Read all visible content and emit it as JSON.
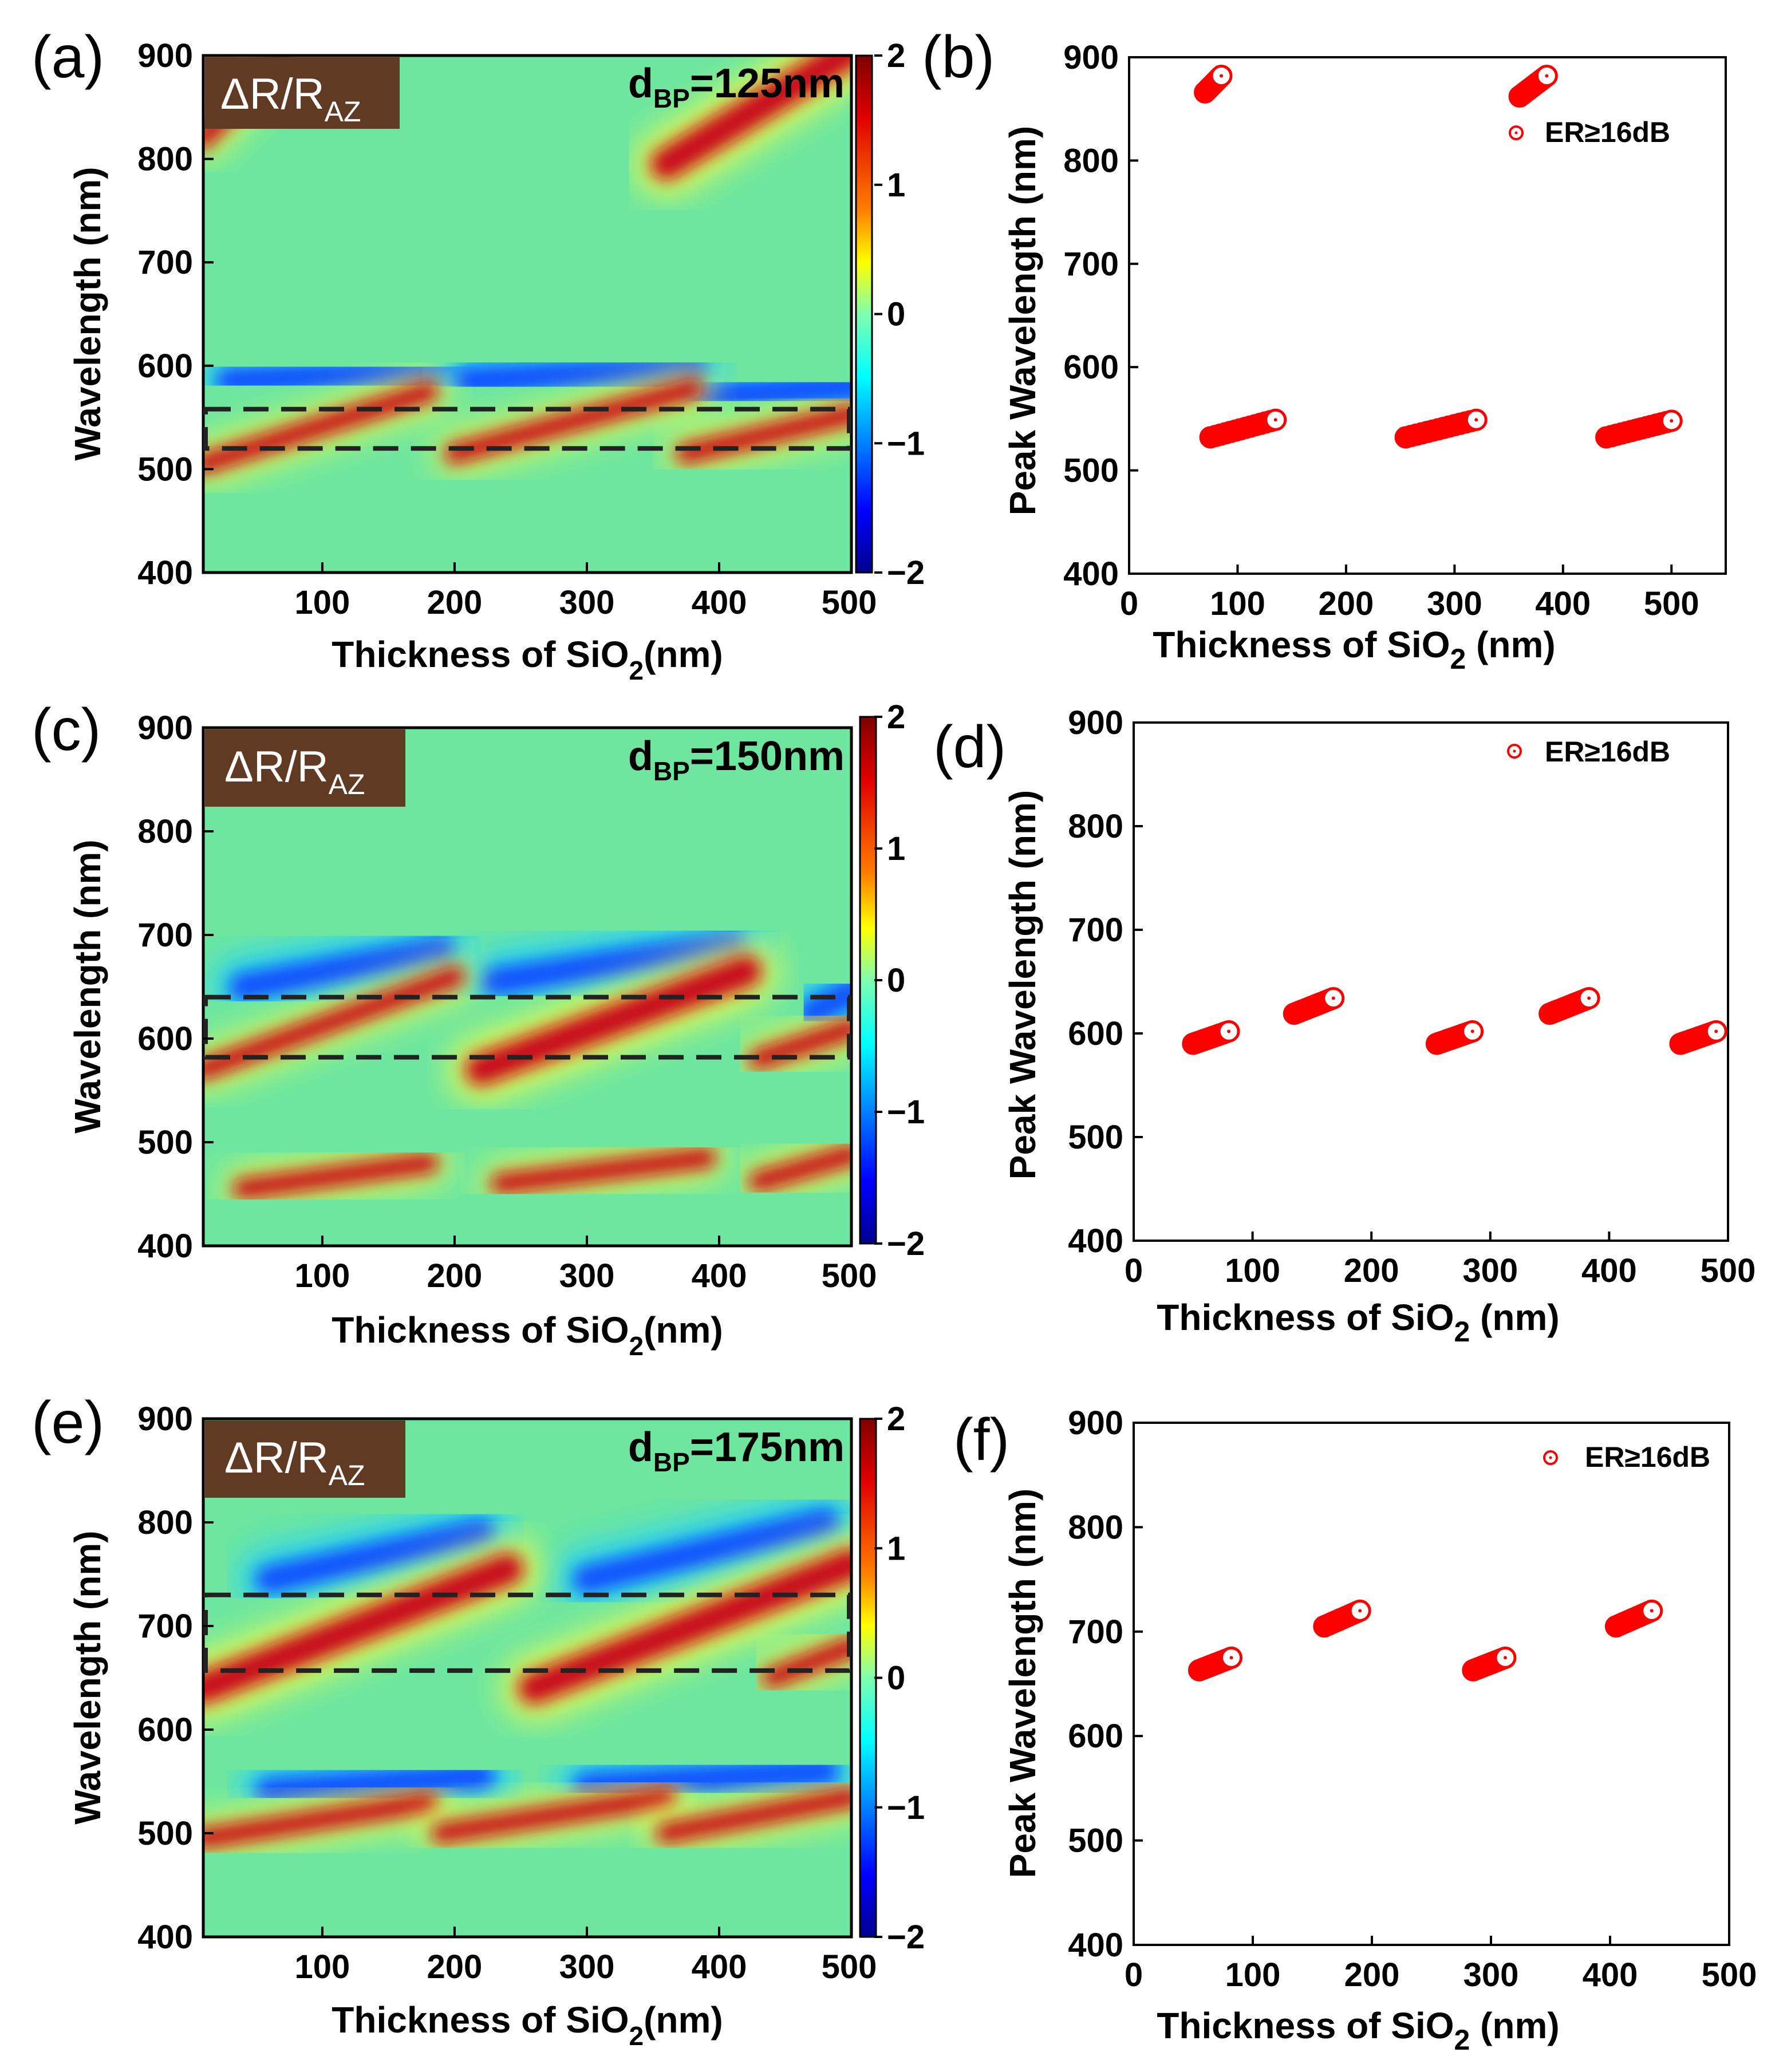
{
  "colors": {
    "background_green": "#6ee6a0",
    "red_band": "#c8101a",
    "blue_band": "#0a3aff",
    "marker_red": "#ff0000",
    "label_box": "#613a24",
    "dashed": "#222222"
  },
  "colorbar": {
    "ticks": [
      "2",
      "1",
      "0",
      "−1",
      "−2"
    ],
    "range": [
      -2,
      2
    ]
  },
  "heatmaps": [
    {
      "letter": "(a)",
      "dbp": "125nm",
      "dbp_prefix": "d",
      "dbp_sub": "BP",
      "dbp_eq": "=",
      "quantity": "ΔR/R",
      "quantity_sub": "AZ",
      "xlabel": "Thickness of SiO",
      "xlabel_sub": "2",
      "xlabel_unit": "(nm)",
      "ylabel": "Wavelength (nm)",
      "xlim": [
        10,
        500
      ],
      "ylim": [
        400,
        900
      ],
      "xticks": [
        "100",
        "200",
        "300",
        "400",
        "500"
      ],
      "yticks": [
        "400",
        "500",
        "600",
        "700",
        "800",
        "900"
      ],
      "dashed_box": [
        520,
        558
      ],
      "red_bands": [
        {
          "x": [
            10,
            180
          ],
          "y": [
            505,
            575
          ]
        },
        {
          "x": [
            200,
            380
          ],
          "y": [
            515,
            578
          ]
        },
        {
          "x": [
            375,
            500
          ],
          "y": [
            515,
            553
          ]
        },
        {
          "x": [
            10,
            70
          ],
          "y": [
            820,
            900
          ]
        },
        {
          "x": [
            360,
            500
          ],
          "y": [
            795,
            905
          ]
        }
      ],
      "blue_bands": [
        {
          "x": [
            30,
            200
          ],
          "y": [
            585,
            595
          ]
        },
        {
          "x": [
            210,
            380
          ],
          "y": [
            585,
            598
          ]
        },
        {
          "x": [
            390,
            500
          ],
          "y": [
            570,
            580
          ]
        }
      ]
    },
    {
      "letter": "(c)",
      "dbp": "150nm",
      "dbp_prefix": "d",
      "dbp_sub": "BP",
      "dbp_eq": "=",
      "quantity": "ΔR/R",
      "quantity_sub": "AZ",
      "xlabel": "Thickness of SiO",
      "xlabel_sub": "2",
      "xlabel_unit": "(nm)",
      "ylabel": "Wavelength (nm)",
      "xlim": [
        10,
        500
      ],
      "ylim": [
        400,
        900
      ],
      "xticks": [
        "100",
        "200",
        "300",
        "400",
        "500"
      ],
      "yticks": [
        "400",
        "500",
        "600",
        "700",
        "800",
        "900"
      ],
      "dashed_box": [
        582,
        640
      ],
      "red_bands": [
        {
          "x": [
            10,
            200
          ],
          "y": [
            570,
            660
          ]
        },
        {
          "x": [
            220,
            420
          ],
          "y": [
            570,
            665
          ]
        },
        {
          "x": [
            430,
            500
          ],
          "y": [
            580,
            610
          ]
        },
        {
          "x": [
            40,
            180
          ],
          "y": [
            455,
            480
          ]
        },
        {
          "x": [
            235,
            390
          ],
          "y": [
            460,
            485
          ]
        },
        {
          "x": [
            430,
            500
          ],
          "y": [
            462,
            488
          ]
        }
      ],
      "blue_bands": [
        {
          "x": [
            40,
            190
          ],
          "y": [
            650,
            685
          ]
        },
        {
          "x": [
            230,
            410
          ],
          "y": [
            655,
            690
          ]
        },
        {
          "x": [
            470,
            500
          ],
          "y": [
            625,
            645
          ]
        }
      ]
    },
    {
      "letter": "(e)",
      "dbp": "175nm",
      "dbp_prefix": "d",
      "dbp_sub": "BP",
      "dbp_eq": "=",
      "quantity": "ΔR/R",
      "quantity_sub": "AZ",
      "xlabel": "Thickness of SiO",
      "xlabel_sub": "2",
      "xlabel_unit": "(nm)",
      "ylabel": "Wavelength (nm)",
      "xlim": [
        10,
        500
      ],
      "ylim": [
        400,
        900
      ],
      "xticks": [
        "100",
        "200",
        "300",
        "400",
        "500"
      ],
      "yticks": [
        "400",
        "500",
        "600",
        "700",
        "800",
        "900"
      ],
      "dashed_box": [
        657,
        730
      ],
      "red_bands": [
        {
          "x": [
            10,
            240
          ],
          "y": [
            640,
            755
          ]
        },
        {
          "x": [
            260,
            500
          ],
          "y": [
            640,
            760
          ]
        },
        {
          "x": [
            440,
            500
          ],
          "y": [
            650,
            680
          ]
        },
        {
          "x": [
            10,
            180
          ],
          "y": [
            495,
            530
          ]
        },
        {
          "x": [
            190,
            360
          ],
          "y": [
            500,
            535
          ]
        },
        {
          "x": [
            360,
            500
          ],
          "y": [
            500,
            535
          ]
        }
      ],
      "blue_bands": [
        {
          "x": [
            60,
            220
          ],
          "y": [
            745,
            790
          ]
        },
        {
          "x": [
            300,
            480
          ],
          "y": [
            745,
            800
          ]
        },
        {
          "x": [
            60,
            220
          ],
          "y": [
            540,
            555
          ]
        },
        {
          "x": [
            300,
            480
          ],
          "y": [
            545,
            560
          ]
        }
      ]
    }
  ],
  "chart_data": [
    {
      "type": "scatter",
      "letter": "(b)",
      "xlabel": "Thickness of SiO",
      "xlabel_sub": "2",
      "xlabel_unit": " (nm)",
      "ylabel": "Peak Wavelength (nm)",
      "legend": "ER≥16dB",
      "legend_position": "top-right",
      "xlim": [
        0,
        550
      ],
      "ylim": [
        400,
        900
      ],
      "xticks": [
        "0",
        "100",
        "200",
        "300",
        "400",
        "500"
      ],
      "yticks": [
        "400",
        "500",
        "600",
        "700",
        "800",
        "900"
      ],
      "clusters": [
        {
          "x": [
            70,
            85
          ],
          "y": [
            866,
            882
          ]
        },
        {
          "x": [
            360,
            385
          ],
          "y": [
            862,
            882
          ]
        },
        {
          "x": [
            75,
            135
          ],
          "y": [
            532,
            549
          ]
        },
        {
          "x": [
            255,
            320
          ],
          "y": [
            532,
            549
          ]
        },
        {
          "x": [
            440,
            500
          ],
          "y": [
            532,
            548
          ]
        }
      ]
    },
    {
      "type": "scatter",
      "letter": "(d)",
      "xlabel": "Thickness of SiO",
      "xlabel_sub": "2",
      "xlabel_unit": " (nm)",
      "ylabel": "Peak Wavelength (nm)",
      "legend": "ER≥16dB",
      "legend_position": "top-right",
      "xlim": [
        0,
        500
      ],
      "ylim": [
        400,
        900
      ],
      "xticks": [
        "0",
        "100",
        "200",
        "300",
        "400",
        "500"
      ],
      "yticks": [
        "400",
        "500",
        "600",
        "700",
        "800",
        "900"
      ],
      "clusters": [
        {
          "x": [
            50,
            80
          ],
          "y": [
            590,
            602
          ]
        },
        {
          "x": [
            135,
            168
          ],
          "y": [
            619,
            634
          ]
        },
        {
          "x": [
            255,
            285
          ],
          "y": [
            590,
            602
          ]
        },
        {
          "x": [
            350,
            383
          ],
          "y": [
            619,
            634
          ]
        },
        {
          "x": [
            460,
            490
          ],
          "y": [
            590,
            602
          ]
        }
      ]
    },
    {
      "type": "scatter",
      "letter": "(f)",
      "xlabel": "Thickness of SiO",
      "xlabel_sub": "2",
      "xlabel_unit": " (nm)",
      "ylabel": "Peak Wavelength (nm)",
      "legend": "ER≥16dB",
      "legend_position": "top-right",
      "xlim": [
        0,
        500
      ],
      "ylim": [
        400,
        900
      ],
      "xticks": [
        "0",
        "100",
        "200",
        "300",
        "400",
        "500"
      ],
      "yticks": [
        "400",
        "500",
        "600",
        "700",
        "800",
        "900"
      ],
      "clusters": [
        {
          "x": [
            55,
            82
          ],
          "y": [
            663,
            675
          ]
        },
        {
          "x": [
            160,
            190
          ],
          "y": [
            705,
            720
          ]
        },
        {
          "x": [
            285,
            312
          ],
          "y": [
            663,
            675
          ]
        },
        {
          "x": [
            405,
            435
          ],
          "y": [
            705,
            720
          ]
        }
      ]
    }
  ]
}
